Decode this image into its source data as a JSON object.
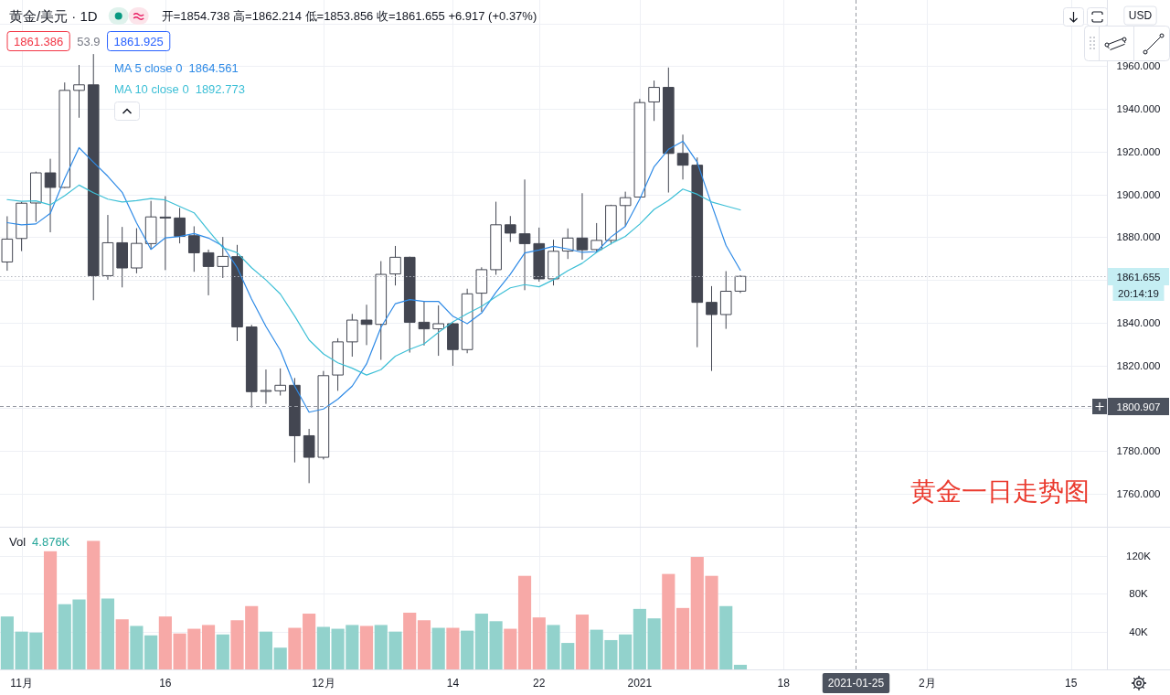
{
  "chart_data": [
    {
      "type": "candlestick",
      "title": "黄金/美元 · 1D",
      "subtitle": "开=1854.738 高=1862.214 低=1853.856 收=1861.655 +6.917 (+0.37%)",
      "categories": [
        null,
        null,
        null,
        null,
        null,
        null,
        null,
        null,
        null,
        null,
        null,
        null,
        null,
        null,
        null,
        null,
        null,
        null,
        null,
        null,
        null,
        null,
        null,
        null,
        null,
        null,
        null,
        null,
        null,
        null,
        null,
        null,
        null,
        null,
        null,
        null,
        null,
        null,
        null,
        null,
        null,
        null,
        null,
        null,
        null,
        null,
        null,
        null,
        null,
        null,
        null,
        null,
        null,
        null,
        null,
        null,
        null,
        null,
        null,
        null,
        null,
        null,
        null,
        null,
        null,
        null,
        null,
        null,
        null,
        null,
        null,
        null,
        null,
        null,
        null,
        null,
        null
      ],
      "ohlc": [
        [
          1868.4,
          1889.8,
          1864.3,
          1879.1
        ],
        [
          1879.4,
          1896.5,
          1873.5,
          1895.9
        ],
        [
          1896.0,
          1910.7,
          1887.2,
          1910.1
        ],
        [
          1910.1,
          1916.7,
          1882.3,
          1903.3
        ],
        [
          1903.3,
          1952.4,
          1903.0,
          1948.7
        ],
        [
          1948.7,
          1960.6,
          1935.9,
          1951.3
        ],
        [
          1951.3,
          1965.7,
          1850.5,
          1862.0
        ],
        [
          1862.0,
          1890.4,
          1860.1,
          1877.4
        ],
        [
          1877.4,
          1884.8,
          1856.5,
          1865.6
        ],
        [
          1865.6,
          1884.2,
          1863.1,
          1877.1
        ],
        [
          1877.0,
          1897.0,
          1874.2,
          1889.5
        ],
        [
          1889.4,
          1899.2,
          1864.6,
          1889.0
        ],
        [
          1889.0,
          1893.7,
          1877.1,
          1880.4
        ],
        [
          1880.7,
          1885.1,
          1863.8,
          1872.7
        ],
        [
          1872.7,
          1874.2,
          1852.8,
          1866.3
        ],
        [
          1866.3,
          1880.1,
          1860.9,
          1871.0
        ],
        [
          1870.9,
          1876.4,
          1831.4,
          1838.0
        ],
        [
          1838.0,
          1839.0,
          1800.3,
          1807.7
        ],
        [
          1807.9,
          1818.1,
          1802.0,
          1808.2
        ],
        [
          1808.1,
          1818.6,
          1805.9,
          1810.7
        ],
        [
          1810.7,
          1814.1,
          1774.6,
          1787.1
        ],
        [
          1787.1,
          1790.3,
          1764.9,
          1777.0
        ],
        [
          1777.0,
          1817.4,
          1776.0,
          1815.2
        ],
        [
          1815.5,
          1832.7,
          1808.1,
          1831.0
        ],
        [
          1831.0,
          1844.1,
          1824.1,
          1841.2
        ],
        [
          1841.2,
          1848.4,
          1829.5,
          1839.2
        ],
        [
          1839.2,
          1868.8,
          1822.6,
          1862.6
        ],
        [
          1862.8,
          1875.9,
          1857.4,
          1870.6
        ],
        [
          1870.6,
          1870.9,
          1826.0,
          1840.2
        ],
        [
          1840.2,
          1850.2,
          1829.3,
          1837.1
        ],
        [
          1837.1,
          1848.1,
          1824.5,
          1839.5
        ],
        [
          1839.5,
          1840.0,
          1819.8,
          1827.4
        ],
        [
          1827.4,
          1855.9,
          1825.7,
          1853.5
        ],
        [
          1853.8,
          1865.9,
          1845.1,
          1864.8
        ],
        [
          1864.8,
          1896.6,
          1862.4,
          1885.8
        ],
        [
          1885.8,
          1889.9,
          1877.8,
          1881.9
        ],
        [
          1881.6,
          1907.0,
          1855.2,
          1877.0
        ],
        [
          1877.0,
          1884.5,
          1859.2,
          1860.5
        ],
        [
          1860.5,
          1878.8,
          1857.4,
          1873.4
        ],
        [
          1873.5,
          1884.1,
          1869.8,
          1879.6
        ],
        [
          1879.6,
          1900.6,
          1869.5,
          1874.1
        ],
        [
          1874.2,
          1886.6,
          1872.8,
          1878.5
        ],
        [
          1878.5,
          1895.2,
          1876.6,
          1894.8
        ],
        [
          1894.8,
          1901.3,
          1885.2,
          1898.5
        ],
        [
          1898.8,
          1944.7,
          1898.5,
          1943.0
        ],
        [
          1943.3,
          1953.3,
          1934.4,
          1950.1
        ],
        [
          1950.1,
          1959.4,
          1900.9,
          1919.2
        ],
        [
          1919.2,
          1928.0,
          1907.0,
          1913.7
        ],
        [
          1913.7,
          1917.3,
          1828.5,
          1849.5
        ],
        [
          1849.5,
          1857.1,
          1817.4,
          1843.8
        ],
        [
          1843.8,
          1864.1,
          1837.1,
          1854.7
        ],
        [
          1854.738,
          1862.214,
          1853.856,
          1861.655
        ],
        null,
        null,
        null,
        null,
        null,
        null,
        null,
        null,
        null,
        null,
        null,
        null,
        null,
        null,
        null,
        null,
        null,
        null,
        null,
        null,
        null,
        null,
        null,
        null,
        null
      ],
      "colors": [
        "#ffffff",
        "#ffffff",
        "#ffffff",
        "#434651",
        "#ffffff",
        "#ffffff",
        "#434651",
        "#ffffff",
        "#434651",
        "#ffffff",
        "#ffffff",
        "#434651",
        "#434651",
        "#434651",
        "#434651",
        "#ffffff",
        "#434651",
        "#434651",
        "#ffffff",
        "#ffffff",
        "#434651",
        "#434651",
        "#ffffff",
        "#ffffff",
        "#ffffff",
        "#434651",
        "#ffffff",
        "#ffffff",
        "#434651",
        "#434651",
        "#ffffff",
        "#434651",
        "#ffffff",
        "#ffffff",
        "#ffffff",
        "#434651",
        "#434651",
        "#434651",
        "#ffffff",
        "#ffffff",
        "#434651",
        "#ffffff",
        "#ffffff",
        "#ffffff",
        "#ffffff",
        "#ffffff",
        "#434651",
        "#434651",
        "#434651",
        "#434651",
        "#ffffff",
        "#ffffff",
        null,
        null,
        null,
        null,
        null,
        null,
        null,
        null,
        null,
        null,
        null,
        null,
        null,
        null,
        null,
        null,
        null,
        null,
        null,
        null,
        null,
        null,
        null,
        null,
        null
      ],
      "series": [
        {
          "name": "MA 5 close 0",
          "type": "line",
          "color": "#2e8ae6",
          "values": [
            1886.8,
            1885.8,
            1886.2,
            1891.2,
            1907.4,
            1921.9,
            1915.1,
            1908.5,
            1901.0,
            1886.7,
            1874.3,
            1879.7,
            1880.3,
            1881.7,
            1879.6,
            1875.9,
            1865.7,
            1851.1,
            1838.2,
            1827.1,
            1810.3,
            1798.1,
            1799.6,
            1804.2,
            1810.3,
            1820.7,
            1837.8,
            1848.9,
            1850.8,
            1849.9,
            1850.0,
            1843.0,
            1839.5,
            1844.5,
            1854.2,
            1862.7,
            1872.6,
            1874.0,
            1875.7,
            1874.5,
            1872.9,
            1873.2,
            1880.1,
            1885.1,
            1897.8,
            1913.0,
            1921.1,
            1924.9,
            1915.1,
            1895.3,
            1876.2,
            1864.561,
            null,
            null,
            null,
            null,
            null,
            null,
            null,
            null,
            null,
            null,
            null,
            null,
            null,
            null,
            null,
            null,
            null,
            null,
            null,
            null,
            null,
            null,
            null,
            null,
            null
          ]
        },
        {
          "name": "MA 10 close 0",
          "type": "line",
          "color": "#3cbfd6",
          "values": [
            1897.6,
            1896.8,
            1897.0,
            1895.1,
            1899.4,
            1904.4,
            1900.8,
            1897.8,
            1896.5,
            1897.1,
            1898.1,
            1897.4,
            1894.4,
            1891.4,
            1883.1,
            1875.1,
            1872.7,
            1865.7,
            1860.0,
            1853.4,
            1843.1,
            1831.9,
            1825.4,
            1821.2,
            1818.7,
            1815.5,
            1818.0,
            1824.3,
            1827.5,
            1830.1,
            1835.4,
            1840.4,
            1844.2,
            1847.6,
            1852.1,
            1856.3,
            1857.8,
            1856.8,
            1860.1,
            1864.3,
            1867.8,
            1872.9,
            1877.0,
            1880.4,
            1886.1,
            1893.0,
            1897.2,
            1902.5,
            1900.1,
            1896.5,
            1894.6,
            1892.773,
            null,
            null,
            null,
            null,
            null,
            null,
            null,
            null,
            null,
            null,
            null,
            null,
            null,
            null,
            null,
            null,
            null,
            null,
            null,
            null,
            null,
            null,
            null,
            null,
            null
          ]
        }
      ],
      "ylim": [
        1744.5,
        1991
      ],
      "yticks": [
        {
          "value": 1760,
          "label": "1760.000"
        },
        {
          "value": 1780,
          "label": "1780.000"
        },
        {
          "value": 1800,
          "label": null
        },
        {
          "value": 1820,
          "label": "1820.000"
        },
        {
          "value": 1840,
          "label": "1840.000"
        },
        {
          "value": 1860,
          "label": null
        },
        {
          "value": 1880,
          "label": "1880.000"
        },
        {
          "value": 1900,
          "label": "1900.000"
        },
        {
          "value": 1920,
          "label": "1920.000"
        },
        {
          "value": 1940,
          "label": "1940.000"
        },
        {
          "value": 1960,
          "label": "1960.000"
        },
        {
          "value": 1980,
          "label": null
        }
      ],
      "tick_labels": "y",
      "grid": true,
      "legend": "top left",
      "ref_lines": [
        {
          "axis": "y",
          "value": 1861.655,
          "line_style": "dotted",
          "color": "#b2b5be"
        },
        {
          "axis": "y",
          "value": 1800.907,
          "line_style": "dashed",
          "color": "#9598a1"
        }
      ],
      "annotations": [
        "1861.386",
        "53.9",
        "1861.925",
        "1864.561",
        "1892.773",
        "20:14:19",
        "USD",
        "黄金一日走势图",
        "1861.655",
        "1800.907"
      ]
    },
    {
      "type": "bar",
      "categories": [
        null,
        "11月",
        null,
        null,
        null,
        null,
        null,
        null,
        null,
        null,
        null,
        "16",
        null,
        null,
        null,
        null,
        null,
        null,
        null,
        null,
        null,
        null,
        "12月",
        null,
        null,
        null,
        null,
        null,
        null,
        null,
        null,
        "14",
        null,
        null,
        null,
        null,
        null,
        "22",
        null,
        null,
        null,
        null,
        null,
        null,
        "2021",
        null,
        null,
        null,
        null,
        null,
        null,
        null,
        null,
        null,
        "18",
        null,
        null,
        null,
        null,
        "2021-01-25",
        null,
        null,
        null,
        null,
        "2月",
        null,
        null,
        null,
        null,
        null,
        null,
        null,
        null,
        null,
        "15",
        null,
        null
      ],
      "series": [
        {
          "name": "Vol",
          "values": [
            56,
            40,
            39,
            125,
            69,
            74,
            136,
            75,
            53,
            46,
            36,
            56,
            38,
            43,
            47,
            37,
            52,
            67,
            40,
            23,
            44,
            59,
            45,
            43,
            47,
            46,
            47,
            40,
            60,
            52,
            44,
            44,
            41,
            59,
            51,
            43,
            99,
            55,
            47,
            28,
            58,
            42,
            31,
            37,
            64,
            54,
            101,
            65,
            119,
            99,
            67,
            4.876,
            null,
            null,
            null,
            null,
            null,
            null,
            null,
            null,
            null,
            null,
            null,
            null,
            null,
            null,
            null,
            null,
            null,
            null,
            null,
            null,
            null,
            null,
            null,
            null,
            null
          ],
          "colors": [
            "#92d2cc",
            "#92d2cc",
            "#92d2cc",
            "#f7a9a7",
            "#92d2cc",
            "#92d2cc",
            "#f7a9a7",
            "#92d2cc",
            "#f7a9a7",
            "#92d2cc",
            "#92d2cc",
            "#f7a9a7",
            "#f7a9a7",
            "#f7a9a7",
            "#f7a9a7",
            "#92d2cc",
            "#f7a9a7",
            "#f7a9a7",
            "#92d2cc",
            "#92d2cc",
            "#f7a9a7",
            "#f7a9a7",
            "#92d2cc",
            "#92d2cc",
            "#92d2cc",
            "#f7a9a7",
            "#92d2cc",
            "#92d2cc",
            "#f7a9a7",
            "#f7a9a7",
            "#92d2cc",
            "#f7a9a7",
            "#92d2cc",
            "#92d2cc",
            "#92d2cc",
            "#f7a9a7",
            "#f7a9a7",
            "#f7a9a7",
            "#92d2cc",
            "#92d2cc",
            "#f7a9a7",
            "#92d2cc",
            "#92d2cc",
            "#92d2cc",
            "#92d2cc",
            "#92d2cc",
            "#f7a9a7",
            "#f7a9a7",
            "#f7a9a7",
            "#f7a9a7",
            "#92d2cc",
            "#92d2cc",
            null,
            null,
            null,
            null,
            null,
            null,
            null,
            null,
            null,
            null,
            null,
            null,
            null,
            null,
            null,
            null,
            null,
            null,
            null,
            null,
            null,
            null,
            null,
            null,
            null
          ]
        }
      ],
      "ylim": [
        0,
        150
      ],
      "yticks": [
        {
          "value": 40,
          "label": "40K"
        },
        {
          "value": 80,
          "label": "80K"
        },
        {
          "value": 120,
          "label": "120K"
        }
      ],
      "grid": true,
      "legend": "top left",
      "ref_lines": [
        {
          "axis": "x",
          "value": "2021-01-25",
          "line_style": "dashed",
          "color": "#9598a1"
        }
      ],
      "annotations": [
        "4.876K"
      ]
    }
  ]
}
